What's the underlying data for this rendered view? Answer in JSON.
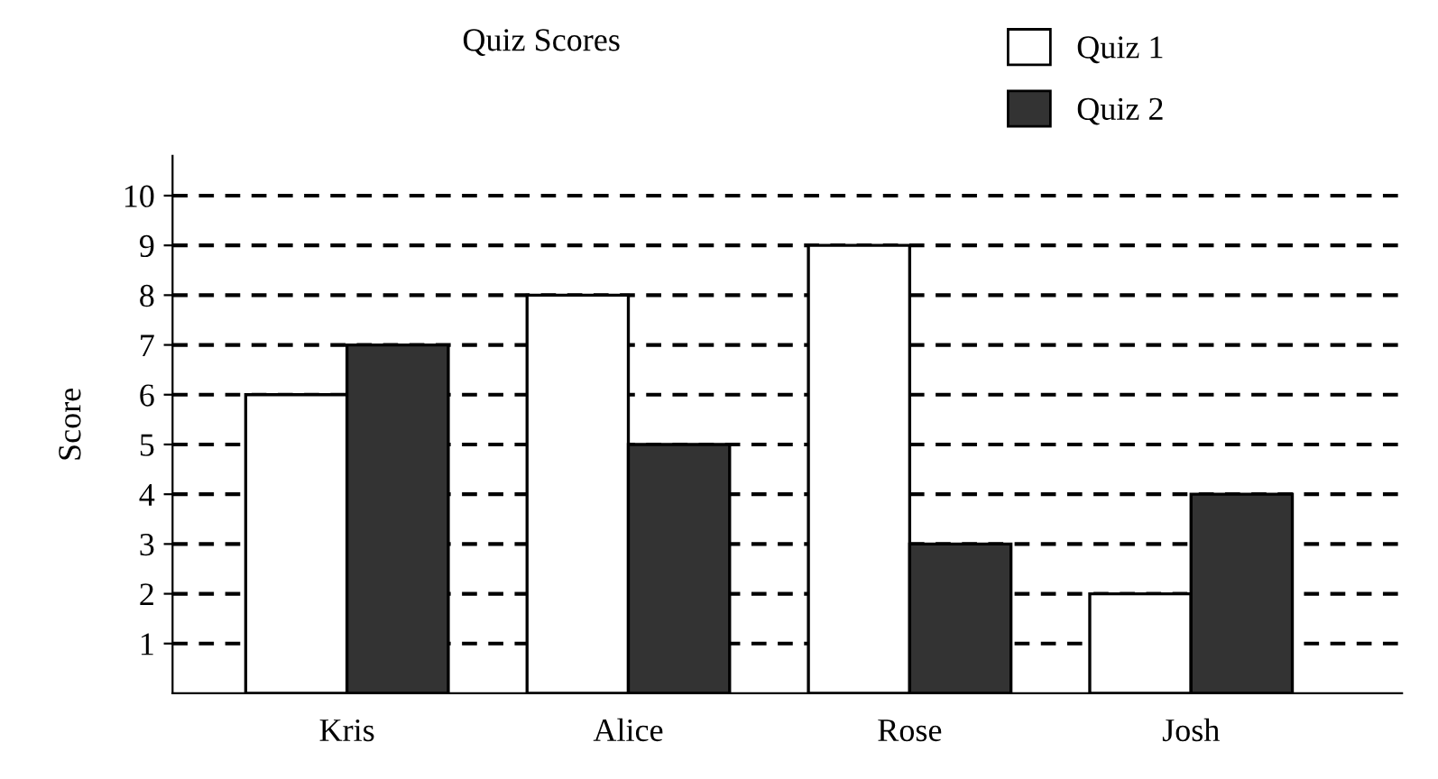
{
  "chart_data": {
    "type": "bar",
    "title": "Quiz Scores",
    "ylabel": "Score",
    "categories": [
      "Kris",
      "Alice",
      "Rose",
      "Josh"
    ],
    "series": [
      {
        "name": "Quiz 1",
        "color": "#ffffff",
        "values": [
          6,
          8,
          9,
          2
        ]
      },
      {
        "name": "Quiz 2",
        "color": "#333333",
        "values": [
          7,
          5,
          3,
          4
        ]
      }
    ],
    "ylim": [
      0,
      10.8
    ],
    "yticks": [
      1,
      2,
      3,
      4,
      5,
      6,
      7,
      8,
      9,
      10
    ],
    "grid": "y",
    "line_style": "dashed",
    "legend": "top right"
  }
}
